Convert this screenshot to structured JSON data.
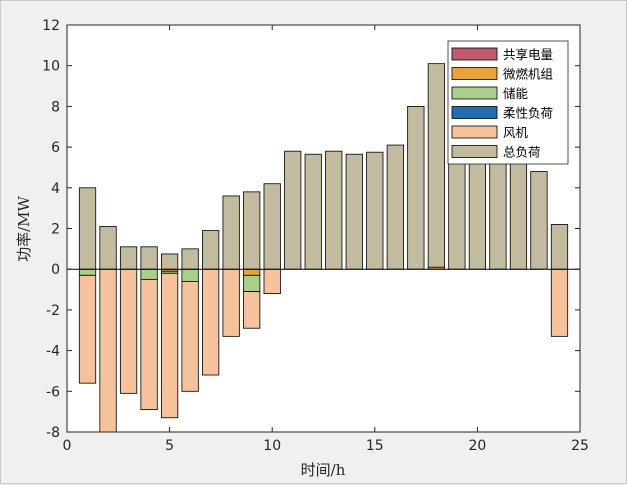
{
  "chart_data": {
    "type": "bar",
    "stacked": true,
    "xlabel": "时间/h",
    "ylabel": "功率/MW",
    "xlim": [
      0,
      25
    ],
    "ylim": [
      -8,
      12
    ],
    "xticks": [
      0,
      5,
      10,
      15,
      20,
      25
    ],
    "yticks": [
      -8,
      -6,
      -4,
      -2,
      0,
      2,
      4,
      6,
      8,
      10,
      12
    ],
    "grid": false,
    "legend_position": "top-right",
    "x": [
      1,
      2,
      3,
      4,
      5,
      6,
      7,
      8,
      9,
      10,
      11,
      12,
      13,
      14,
      15,
      16,
      17,
      18,
      19,
      20,
      21,
      22,
      23,
      24
    ],
    "series": [
      {
        "name": "共享电量",
        "color": "#c05b6e",
        "values": [
          0,
          0,
          0,
          0,
          0,
          0,
          0,
          0,
          0,
          0,
          0,
          0,
          0,
          0,
          0,
          0,
          0,
          0,
          0,
          0,
          0,
          0,
          0,
          0
        ]
      },
      {
        "name": "微燃机组",
        "color": "#e8a33d",
        "values": [
          0,
          0,
          0,
          0,
          -0.1,
          0,
          0,
          0,
          -0.3,
          0,
          0,
          0,
          0,
          0,
          0,
          0,
          0,
          0.1,
          0,
          0,
          0,
          0,
          0,
          0
        ]
      },
      {
        "name": "储能",
        "color": "#a9cf8a",
        "values": [
          -0.3,
          0,
          0,
          -0.5,
          -0.1,
          -0.6,
          0,
          0,
          -0.8,
          0,
          0,
          0,
          0,
          0,
          0,
          0,
          0,
          0,
          0,
          0,
          0,
          0,
          0,
          0
        ]
      },
      {
        "name": "柔性负荷",
        "color": "#1f6fb4",
        "values": [
          0,
          0,
          0,
          0,
          0,
          0,
          0,
          0,
          0,
          0,
          0,
          0,
          0,
          0,
          0,
          0,
          0,
          0,
          0,
          0,
          0,
          0,
          0,
          0
        ]
      },
      {
        "name": "风机",
        "color": "#f5c29c",
        "values": [
          -5.3,
          -8.0,
          -6.1,
          -6.4,
          -7.1,
          -5.4,
          -5.2,
          -3.3,
          -1.8,
          -1.2,
          0,
          0,
          0,
          0,
          0,
          0,
          0,
          0,
          0,
          0,
          0,
          0,
          0,
          -3.3
        ]
      },
      {
        "name": "总负荷",
        "color": "#c3bba0",
        "values": [
          4.0,
          2.1,
          1.1,
          1.1,
          0.75,
          1.0,
          1.9,
          3.6,
          3.8,
          4.2,
          5.8,
          5.65,
          5.8,
          5.65,
          5.75,
          6.1,
          8.0,
          10.0,
          9.4,
          8.6,
          6.9,
          6.0,
          4.8,
          2.2
        ]
      }
    ]
  }
}
